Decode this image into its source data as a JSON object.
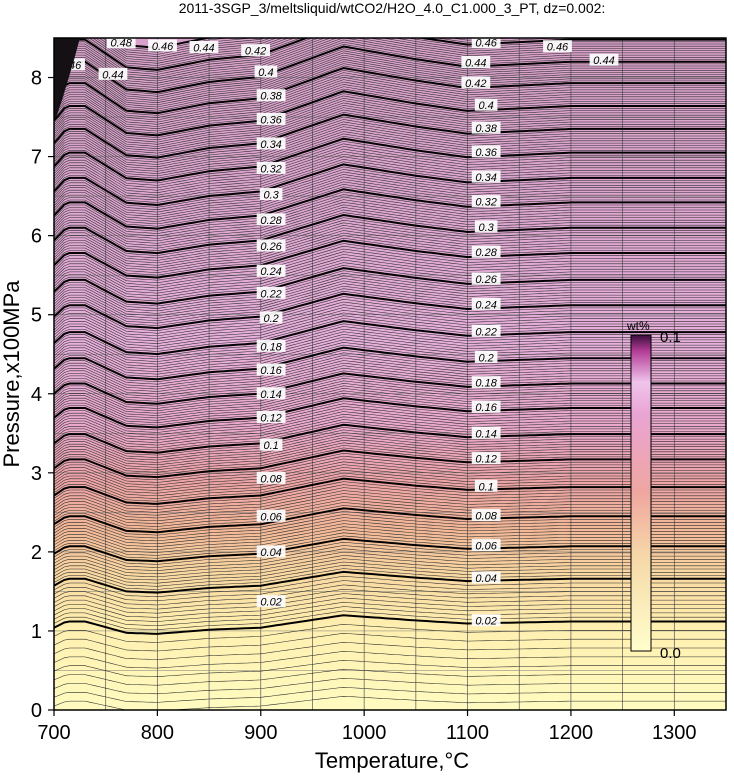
{
  "chart_data": {
    "type": "contour",
    "title": "2011-3SGP_3/meltsliquid/wtCO2/H2O_4.0_C1.000_3_PT, dz=0.002:",
    "xlabel": "Temperature,°C",
    "ylabel": "Pressure,x100MPa",
    "xlim": [
      700,
      1350
    ],
    "ylim": [
      0,
      8.5
    ],
    "x_ticks": [
      700,
      800,
      900,
      1000,
      1100,
      1200,
      1300
    ],
    "y_ticks": [
      0,
      1,
      2,
      3,
      4,
      5,
      6,
      7,
      8
    ],
    "grid": true,
    "contour_interval": 0.002,
    "major_contour_interval": 0.02,
    "shape_profile": {
      "temperature": [
        700,
        712,
        730,
        770,
        800,
        850,
        900,
        980,
        1050,
        1100,
        1150,
        1200,
        1350
      ],
      "offset": [
        -0.06,
        0.0,
        0.0,
        -0.11,
        -0.12,
        -0.08,
        -0.06,
        0.06,
        0.01,
        -0.02,
        -0.01,
        0.0,
        0.0
      ],
      "offset_growth_with_pressure": 2.2
    },
    "contour_levels": [
      {
        "value": 0.02,
        "label": "0.02",
        "pressure_at_1100C": 1.12
      },
      {
        "value": 0.04,
        "label": "0.04",
        "pressure_at_1100C": 1.66
      },
      {
        "value": 0.06,
        "label": "0.06",
        "pressure_at_1100C": 2.07
      },
      {
        "value": 0.08,
        "label": "0.08",
        "pressure_at_1100C": 2.45
      },
      {
        "value": 0.1,
        "label": "0.1",
        "pressure_at_1100C": 2.82
      },
      {
        "value": 0.12,
        "label": "0.12",
        "pressure_at_1100C": 3.17
      },
      {
        "value": 0.14,
        "label": "0.14",
        "pressure_at_1100C": 3.49
      },
      {
        "value": 0.16,
        "label": "0.16",
        "pressure_at_1100C": 3.82
      },
      {
        "value": 0.18,
        "label": "0.18",
        "pressure_at_1100C": 4.13
      },
      {
        "value": 0.2,
        "label": "0.2",
        "pressure_at_1100C": 4.45
      },
      {
        "value": 0.22,
        "label": "0.22",
        "pressure_at_1100C": 4.78
      },
      {
        "value": 0.24,
        "label": "0.24",
        "pressure_at_1100C": 5.12
      },
      {
        "value": 0.26,
        "label": "0.26",
        "pressure_at_1100C": 5.44
      },
      {
        "value": 0.28,
        "label": "0.28",
        "pressure_at_1100C": 5.78
      },
      {
        "value": 0.3,
        "label": "0.3",
        "pressure_at_1100C": 6.1
      },
      {
        "value": 0.32,
        "label": "0.32",
        "pressure_at_1100C": 6.42
      },
      {
        "value": 0.34,
        "label": "0.34",
        "pressure_at_1100C": 6.73
      },
      {
        "value": 0.36,
        "label": "0.36",
        "pressure_at_1100C": 7.05
      },
      {
        "value": 0.38,
        "label": "0.38",
        "pressure_at_1100C": 7.35
      },
      {
        "value": 0.4,
        "label": "0.4",
        "pressure_at_1100C": 7.64
      },
      {
        "value": 0.42,
        "label": "0.42",
        "pressure_at_1100C": 7.93
      },
      {
        "value": 0.44,
        "label": "0.44",
        "pressure_at_1100C": 8.2
      },
      {
        "value": 0.46,
        "label": "0.46",
        "pressure_at_1100C": 8.48
      }
    ],
    "contour_labels": [
      {
        "text": "0.02",
        "t": 1118,
        "p": 1.13
      },
      {
        "text": "0.04",
        "t": 1118,
        "p": 1.67
      },
      {
        "text": "0.06",
        "t": 1118,
        "p": 2.08
      },
      {
        "text": "0.08",
        "t": 1118,
        "p": 2.46
      },
      {
        "text": "0.1",
        "t": 1118,
        "p": 2.83
      },
      {
        "text": "0.12",
        "t": 1118,
        "p": 3.18
      },
      {
        "text": "0.14",
        "t": 1118,
        "p": 3.5
      },
      {
        "text": "0.16",
        "t": 1118,
        "p": 3.83
      },
      {
        "text": "0.18",
        "t": 1118,
        "p": 4.14
      },
      {
        "text": "0.2",
        "t": 1118,
        "p": 4.46
      },
      {
        "text": "0.22",
        "t": 1118,
        "p": 4.79
      },
      {
        "text": "0.24",
        "t": 1118,
        "p": 5.13
      },
      {
        "text": "0.26",
        "t": 1118,
        "p": 5.45
      },
      {
        "text": "0.28",
        "t": 1118,
        "p": 5.79
      },
      {
        "text": "0.3",
        "t": 1118,
        "p": 6.11
      },
      {
        "text": "0.32",
        "t": 1118,
        "p": 6.43
      },
      {
        "text": "0.34",
        "t": 1118,
        "p": 6.74
      },
      {
        "text": "0.36",
        "t": 1118,
        "p": 7.06
      },
      {
        "text": "0.38",
        "t": 1118,
        "p": 7.36
      },
      {
        "text": "0.4",
        "t": 1118,
        "p": 7.65
      },
      {
        "text": "0.42",
        "t": 1108,
        "p": 7.93
      },
      {
        "text": "0.44",
        "t": 1108,
        "p": 8.19
      },
      {
        "text": "0.46",
        "t": 1118,
        "p": 8.44
      },
      {
        "text": "0.02",
        "t": 910,
        "p": 1.37
      },
      {
        "text": "0.04",
        "t": 910,
        "p": 2.0
      },
      {
        "text": "0.06",
        "t": 910,
        "p": 2.45
      },
      {
        "text": "0.08",
        "t": 910,
        "p": 2.93
      },
      {
        "text": "0.1",
        "t": 910,
        "p": 3.35
      },
      {
        "text": "0.12",
        "t": 910,
        "p": 3.7
      },
      {
        "text": "0.14",
        "t": 910,
        "p": 4.0
      },
      {
        "text": "0.16",
        "t": 910,
        "p": 4.3
      },
      {
        "text": "0.18",
        "t": 910,
        "p": 4.6
      },
      {
        "text": "0.2",
        "t": 910,
        "p": 4.96
      },
      {
        "text": "0.22",
        "t": 910,
        "p": 5.27
      },
      {
        "text": "0.24",
        "t": 910,
        "p": 5.55
      },
      {
        "text": "0.26",
        "t": 910,
        "p": 5.87
      },
      {
        "text": "0.28",
        "t": 910,
        "p": 6.2
      },
      {
        "text": "0.3",
        "t": 910,
        "p": 6.52
      },
      {
        "text": "0.32",
        "t": 910,
        "p": 6.85
      },
      {
        "text": "0.34",
        "t": 910,
        "p": 7.16
      },
      {
        "text": "0.36",
        "t": 910,
        "p": 7.47
      },
      {
        "text": "0.38",
        "t": 910,
        "p": 7.77
      },
      {
        "text": "0.4",
        "t": 905,
        "p": 8.07
      },
      {
        "text": "0.42",
        "t": 895,
        "p": 8.34
      },
      {
        "text": "0.44",
        "t": 845,
        "p": 8.38
      },
      {
        "text": "0.46",
        "t": 805,
        "p": 8.4
      },
      {
        "text": "0.48",
        "t": 765,
        "p": 8.44
      },
      {
        "text": "0.46",
        "t": 716,
        "p": 8.16
      },
      {
        "text": "0.44",
        "t": 757,
        "p": 8.04
      },
      {
        "text": "0.46",
        "t": 1187,
        "p": 8.39
      },
      {
        "text": "0.44",
        "t": 1232,
        "p": 8.22
      }
    ],
    "colorbar": {
      "title": "wt%",
      "min_label": "0.0",
      "max_label": "0.1",
      "range": [
        0.0,
        0.1
      ],
      "colors": [
        "#ffffcc",
        "#f6d8a8",
        "#efa6a0",
        "#eaa4d4",
        "#f0c4ec",
        "#b33c96",
        "#3a0e3a"
      ]
    }
  }
}
